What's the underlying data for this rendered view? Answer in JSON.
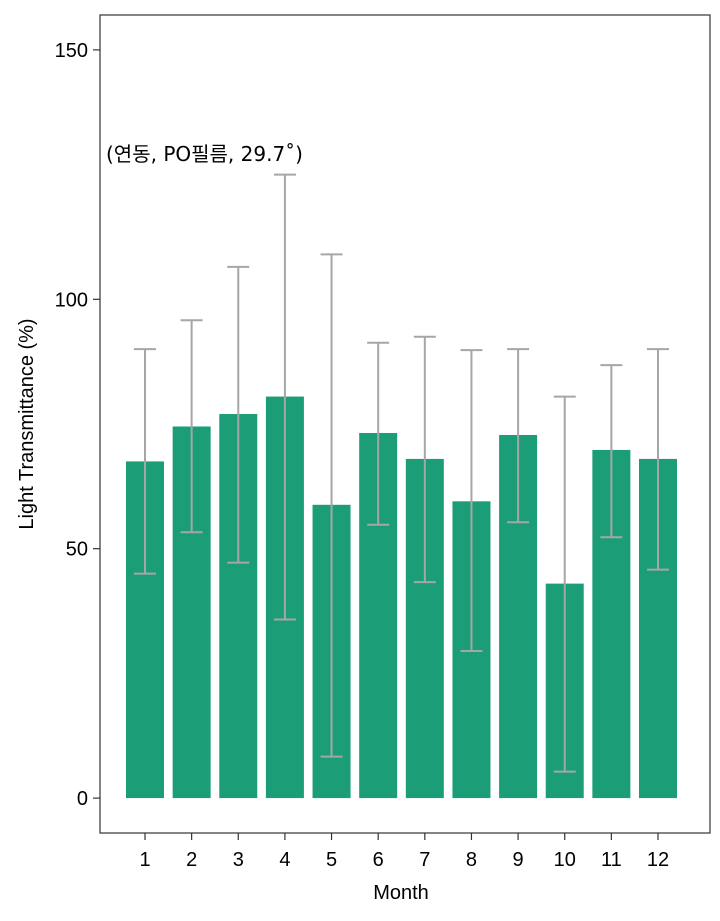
{
  "chart_data": {
    "type": "bar",
    "categories": [
      "1",
      "2",
      "3",
      "4",
      "5",
      "6",
      "7",
      "8",
      "9",
      "10",
      "11",
      "12"
    ],
    "values": [
      67.5,
      74.5,
      77,
      80.5,
      58.8,
      73.2,
      68,
      59.5,
      72.8,
      43,
      69.8,
      68
    ],
    "error_low": [
      45,
      53.3,
      47.2,
      35.8,
      8.3,
      54.8,
      43.3,
      29.5,
      55.3,
      5.3,
      52.3,
      45.8
    ],
    "error_high": [
      90,
      95.8,
      106.5,
      125,
      109,
      91.3,
      92.5,
      89.8,
      90,
      80.5,
      86.8,
      90
    ],
    "xlabel": "Month",
    "ylabel": "Light Transmittance (%)",
    "ylim": [
      -7,
      157
    ],
    "yticks": [
      0,
      50,
      100,
      150
    ],
    "annotation": "(연동, PO필름, 29.7˚)",
    "grid": false,
    "bar_color": "#1b9e77",
    "error_color": "#a6a6a6"
  }
}
